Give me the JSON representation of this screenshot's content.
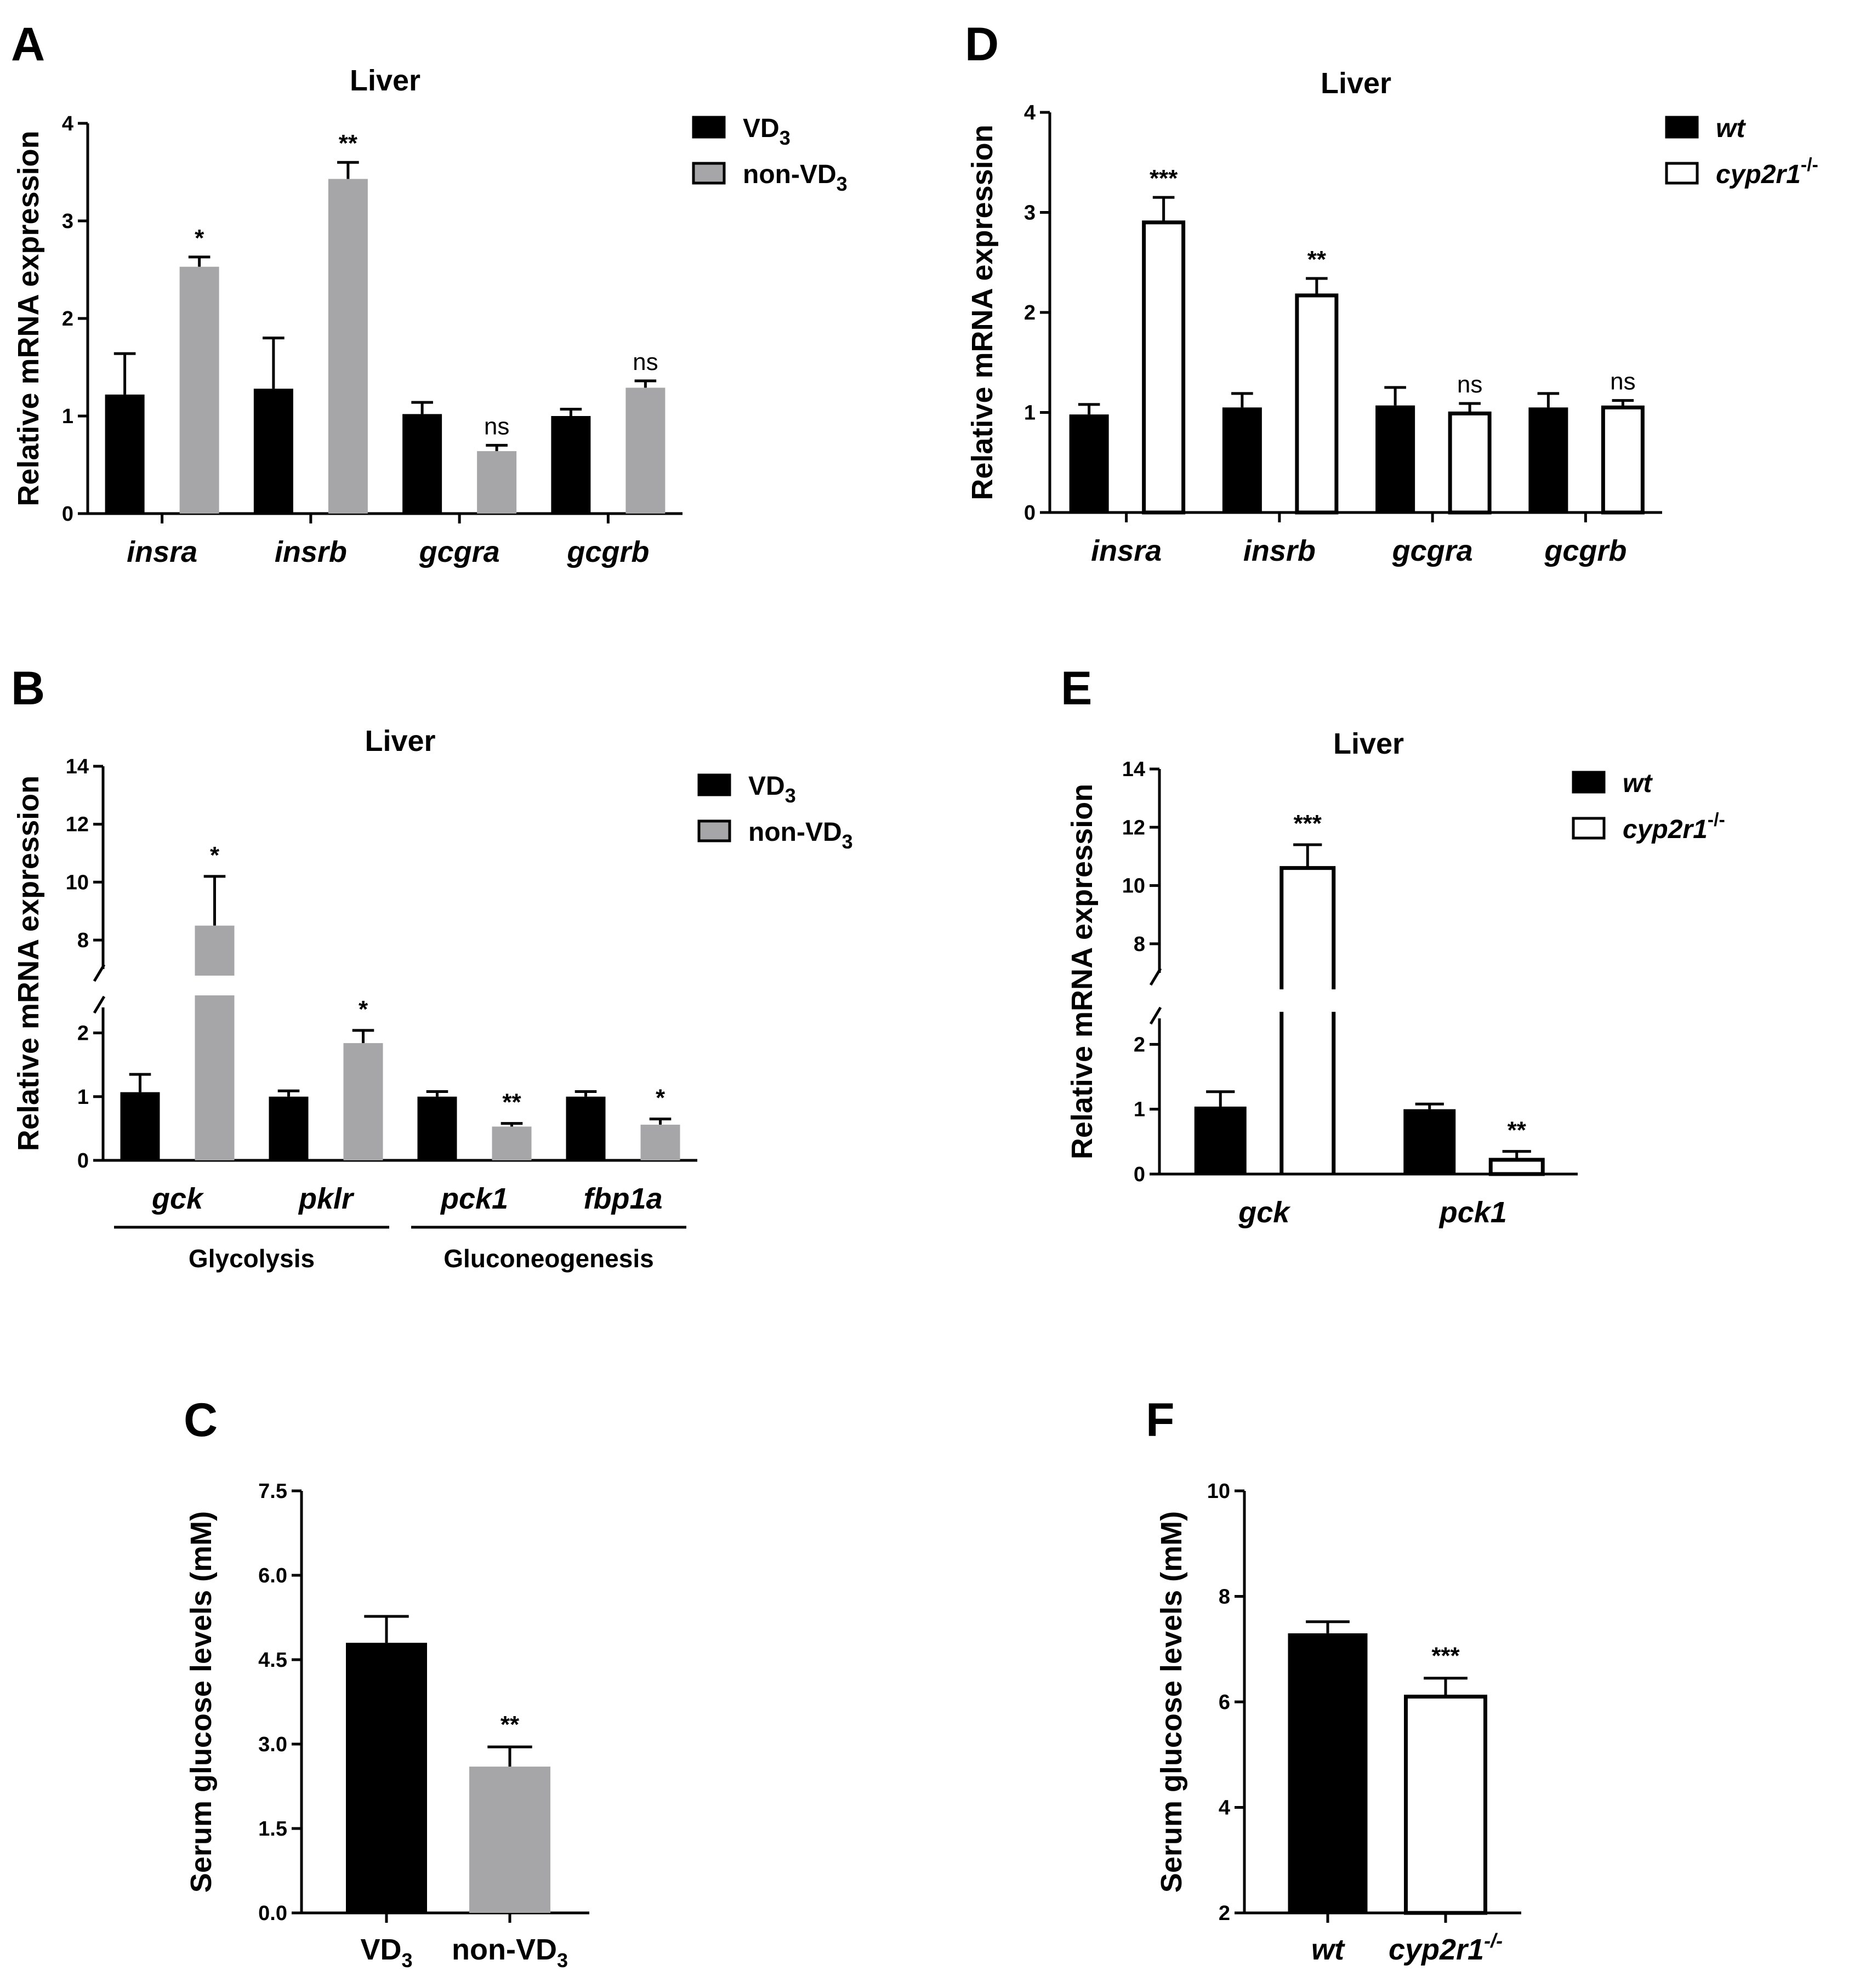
{
  "colors": {
    "ink": "#000000",
    "vd3_fill": "#000000",
    "nonvd3_fill": "#a6a6a8",
    "wt_fill": "#000000",
    "ko_fill": "#ffffff"
  },
  "chart_data": [
    {
      "panel": "A",
      "type": "bar",
      "title": "Liver",
      "ylabel": "Relative mRNA expression",
      "categories": [
        "insra",
        "insrb",
        "gcgra",
        "gcgrb"
      ],
      "categories_italic": true,
      "ylim": [
        0,
        4
      ],
      "yticks": [
        0,
        1,
        2,
        3,
        4
      ],
      "series": [
        {
          "name": "VD",
          "sub": "3",
          "sup": "",
          "italic": false,
          "style": "black",
          "values": [
            1.22,
            1.28,
            1.02,
            1.0
          ],
          "errors": [
            0.42,
            0.52,
            0.12,
            0.07
          ]
        },
        {
          "name": "non-VD",
          "sub": "3",
          "sup": "",
          "italic": false,
          "style": "gray",
          "values": [
            2.53,
            3.43,
            0.64,
            1.29
          ],
          "errors": [
            0.1,
            0.17,
            0.06,
            0.07
          ]
        }
      ],
      "significance": [
        "*",
        "**",
        "ns",
        "ns"
      ]
    },
    {
      "panel": "B",
      "type": "bar",
      "title": "Liver",
      "ylabel": "Relative mRNA expression",
      "categories": [
        "gck",
        "pklr",
        "pck1",
        "fbp1a"
      ],
      "categories_italic": true,
      "axis_break": {
        "lower": [
          0,
          2.4
        ],
        "upper": [
          7,
          14
        ]
      },
      "yticks": [
        0,
        1,
        2,
        8,
        10,
        12,
        14
      ],
      "series": [
        {
          "name": "VD",
          "sub": "3",
          "sup": "",
          "italic": false,
          "style": "black",
          "values": [
            1.07,
            1.0,
            1.0,
            1.0
          ],
          "errors": [
            0.28,
            0.09,
            0.08,
            0.08
          ]
        },
        {
          "name": "non-VD",
          "sub": "3",
          "sup": "",
          "italic": false,
          "style": "gray",
          "values": [
            8.5,
            1.84,
            0.53,
            0.56
          ],
          "errors": [
            1.7,
            0.2,
            0.05,
            0.09
          ]
        }
      ],
      "significance": [
        "*",
        "*",
        "**",
        "*"
      ],
      "groups": [
        {
          "label": "Glycolysis",
          "from": 0,
          "to": 1
        },
        {
          "label": "Gluconeogenesis",
          "from": 2,
          "to": 3
        }
      ]
    },
    {
      "panel": "C",
      "type": "bar",
      "title": "",
      "ylabel": "Serum glucose levels (mM)",
      "categories": [
        "VD3",
        "non-VD3"
      ],
      "categories_italic": false,
      "ylim": [
        0,
        7.5
      ],
      "yticks": [
        "0.0",
        "1.5",
        "3.0",
        "4.5",
        "6.0",
        "7.5"
      ],
      "series": [
        {
          "name": "glucose",
          "style": [
            "black",
            "gray"
          ],
          "values": [
            4.8,
            2.6
          ],
          "errors": [
            0.47,
            0.35
          ]
        }
      ],
      "significance": [
        "",
        "**"
      ]
    },
    {
      "panel": "D",
      "type": "bar",
      "title": "Liver",
      "ylabel": "Relative mRNA expression",
      "categories": [
        "insra",
        "insrb",
        "gcgra",
        "gcgrb"
      ],
      "categories_italic": true,
      "ylim": [
        0,
        4
      ],
      "yticks": [
        0,
        1,
        2,
        3,
        4
      ],
      "series": [
        {
          "name": "wt",
          "sub": "",
          "sup": "",
          "italic": true,
          "style": "black",
          "values": [
            0.98,
            1.05,
            1.07,
            1.05
          ],
          "errors": [
            0.1,
            0.14,
            0.18,
            0.14
          ]
        },
        {
          "name": "cyp2r1",
          "sub": "",
          "sup": "-/-",
          "italic": true,
          "style": "white",
          "values": [
            2.9,
            2.17,
            0.99,
            1.05
          ],
          "errors": [
            0.25,
            0.17,
            0.1,
            0.07
          ]
        }
      ],
      "significance": [
        "***",
        "**",
        "ns",
        "ns"
      ]
    },
    {
      "panel": "E",
      "type": "bar",
      "title": "Liver",
      "ylabel": "Relative mRNA expression",
      "categories": [
        "gck",
        "pck1"
      ],
      "categories_italic": true,
      "axis_break": {
        "lower": [
          0,
          2.4
        ],
        "upper": [
          7,
          14
        ]
      },
      "yticks": [
        0,
        1,
        2,
        8,
        10,
        12,
        14
      ],
      "series": [
        {
          "name": "wt",
          "sub": "",
          "sup": "",
          "italic": true,
          "style": "black",
          "values": [
            1.04,
            1.0
          ],
          "errors": [
            0.23,
            0.08
          ]
        },
        {
          "name": "cyp2r1",
          "sub": "",
          "sup": "-/-",
          "italic": true,
          "style": "white",
          "values": [
            10.6,
            0.22
          ],
          "errors": [
            0.8,
            0.13
          ]
        }
      ],
      "significance": [
        "***",
        "**"
      ]
    },
    {
      "panel": "F",
      "type": "bar",
      "title": "",
      "ylabel": "Serum glucose levels (mM)",
      "categories": [
        "wt",
        "cyp2r1-/-"
      ],
      "categories_italic": true,
      "ylim": [
        2,
        10
      ],
      "yticks": [
        2,
        4,
        6,
        8,
        10
      ],
      "series": [
        {
          "name": "glucose",
          "style": [
            "black",
            "white"
          ],
          "values": [
            7.3,
            6.1
          ],
          "errors": [
            0.22,
            0.35
          ]
        }
      ],
      "significance": [
        "",
        "***"
      ]
    }
  ]
}
